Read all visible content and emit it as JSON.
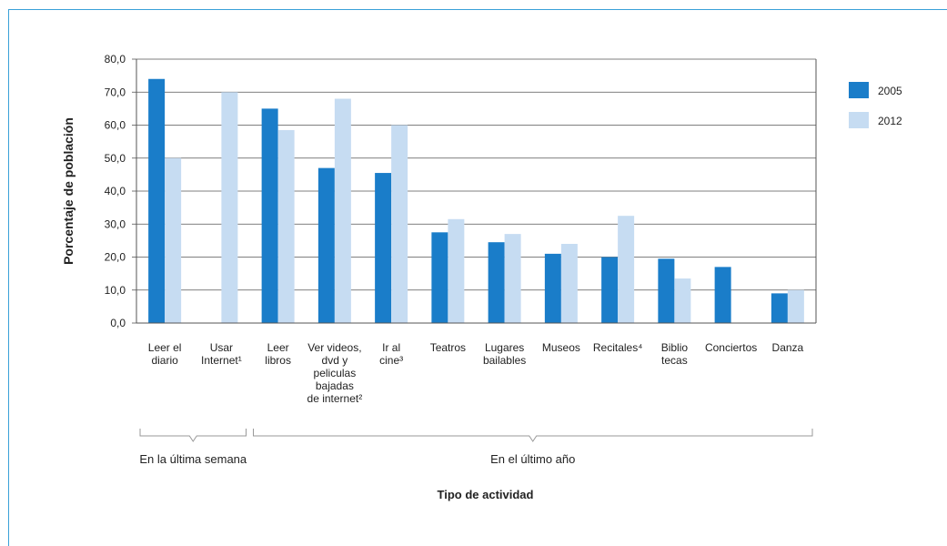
{
  "chart_data": {
    "type": "bar",
    "title": "",
    "xlabel": "Tipo de actividad",
    "ylabel": "Porcentaje de población",
    "ylim": [
      0,
      80
    ],
    "yticks": [
      "0,0",
      "10,0",
      "20,0",
      "30,0",
      "40,0",
      "50,0",
      "60,0",
      "70,0",
      "80,0"
    ],
    "grid": true,
    "legend_position": "right",
    "categories": [
      [
        "Leer el",
        "diario"
      ],
      [
        "Usar",
        "Internet¹"
      ],
      [
        "Leer",
        "libros"
      ],
      [
        "Ver videos,",
        "dvd y",
        "peliculas",
        "bajadas",
        "de internet²"
      ],
      [
        "Ir al",
        "cine³"
      ],
      [
        "Teatros"
      ],
      [
        "Lugares",
        "bailables"
      ],
      [
        "Museos"
      ],
      [
        "Recitales⁴"
      ],
      [
        "Biblio",
        "tecas"
      ],
      [
        "Conciertos"
      ],
      [
        "Danza"
      ]
    ],
    "series": [
      {
        "name": "2005",
        "color": "#1a7dc9",
        "values": [
          74,
          null,
          65,
          47,
          45.5,
          27.5,
          24.5,
          21,
          20,
          19.5,
          17,
          9
        ]
      },
      {
        "name": "2012",
        "color": "#c6dcf2",
        "values": [
          50,
          70,
          58.5,
          68,
          60,
          31.5,
          27,
          24,
          32.5,
          13.5,
          null,
          10
        ]
      }
    ],
    "groups": [
      {
        "label": "En la última semana",
        "from": 0,
        "to": 1
      },
      {
        "label": "En el último año",
        "from": 2,
        "to": 11
      }
    ]
  }
}
